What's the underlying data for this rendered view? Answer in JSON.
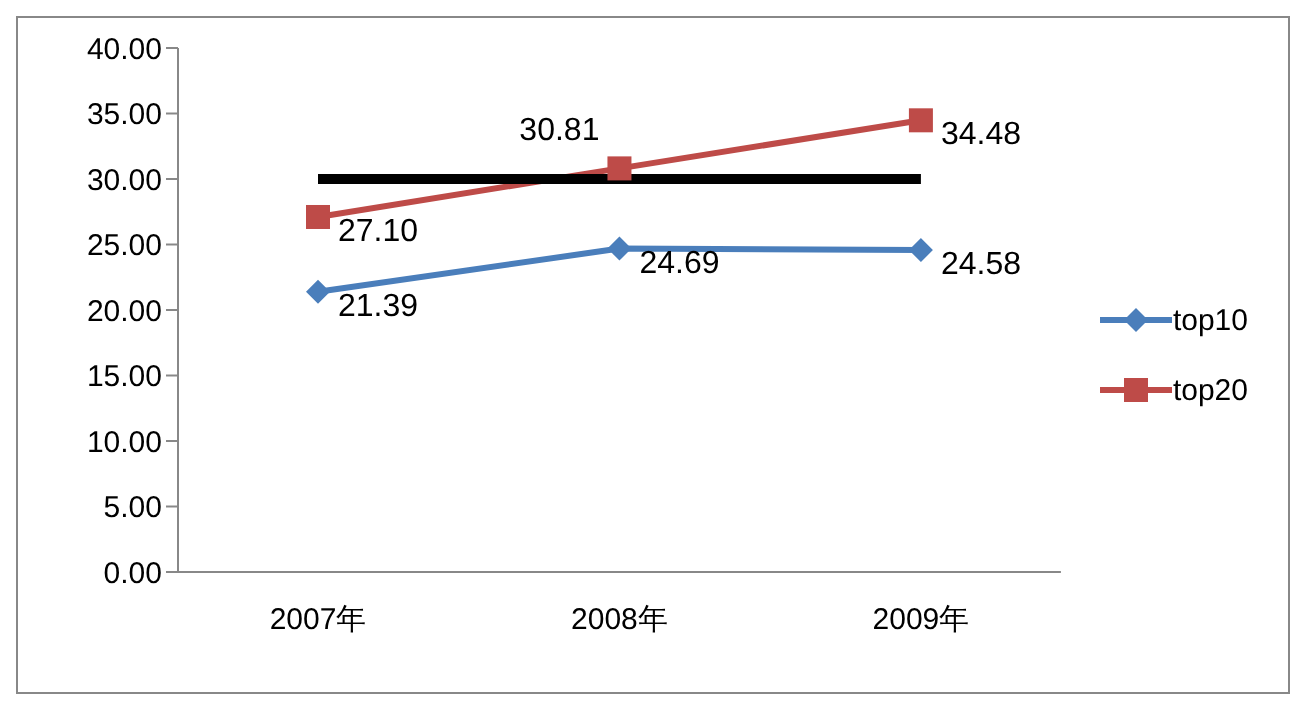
{
  "chart_data": {
    "type": "line",
    "categories": [
      "2007年",
      "2008年",
      "2009年"
    ],
    "series": [
      {
        "name": "top10",
        "color": "#4a7ebb",
        "marker": "diamond",
        "values": [
          21.39,
          24.69,
          24.58
        ],
        "value_labels": [
          "21.39",
          "24.69",
          "24.58"
        ]
      },
      {
        "name": "top20",
        "color": "#be4b48",
        "marker": "square",
        "values": [
          27.1,
          30.81,
          34.48
        ],
        "value_labels": [
          "27.10",
          "30.81",
          "34.48"
        ]
      },
      {
        "color": "#000000",
        "marker": "none",
        "values": [
          30,
          30,
          30
        ]
      }
    ],
    "ylim": [
      0,
      40
    ],
    "yticks": [
      {
        "value": 0,
        "label": "0.00"
      },
      {
        "value": 5,
        "label": "5.00"
      },
      {
        "value": 10,
        "label": "10.00"
      },
      {
        "value": 15,
        "label": "15.00"
      },
      {
        "value": 20,
        "label": "20.00"
      },
      {
        "value": 25,
        "label": "25.00"
      },
      {
        "value": 30,
        "label": "30.00"
      },
      {
        "value": 35,
        "label": "35.00"
      },
      {
        "value": 40,
        "label": "40.00"
      }
    ],
    "grid": false,
    "legend": "right",
    "line_style": "solid"
  }
}
